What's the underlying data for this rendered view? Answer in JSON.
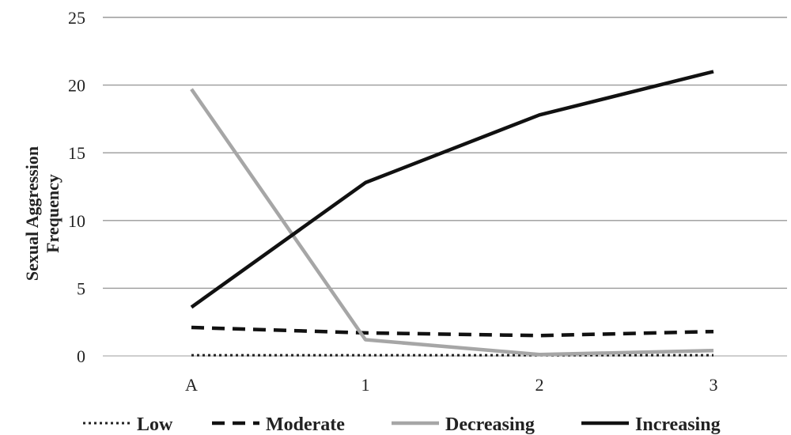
{
  "chart_data": {
    "type": "line",
    "title": "",
    "xlabel": "",
    "ylabel": [
      "Sexual Aggression",
      "Frequency"
    ],
    "categories": [
      "A",
      "1",
      "2",
      "3"
    ],
    "ylim": [
      0,
      25
    ],
    "yticks": [
      "0",
      "5",
      "10",
      "15",
      "20",
      "25"
    ],
    "grid": true,
    "legend_position": "bottom",
    "series": [
      {
        "name": "Low",
        "values": [
          0.05,
          0.05,
          0.05,
          0.05
        ],
        "color": "#222222",
        "style": "dotted"
      },
      {
        "name": "Moderate",
        "values": [
          2.1,
          1.7,
          1.5,
          1.8
        ],
        "color": "#111111",
        "style": "dashed"
      },
      {
        "name": "Decreasing",
        "values": [
          19.7,
          1.2,
          0.1,
          0.4
        ],
        "color": "#a6a6a6",
        "style": "solid"
      },
      {
        "name": "Increasing",
        "values": [
          3.6,
          12.8,
          17.8,
          21.0
        ],
        "color": "#111111",
        "style": "solid"
      }
    ]
  }
}
